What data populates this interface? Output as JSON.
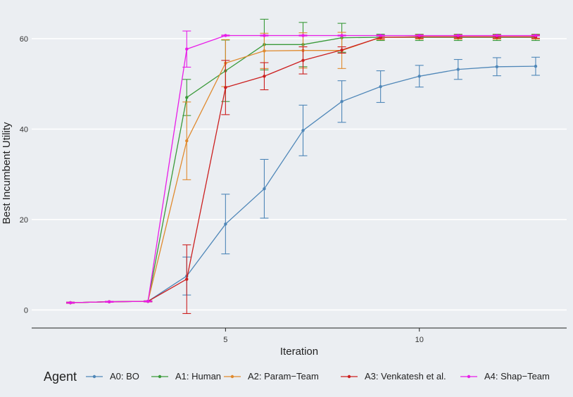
{
  "chart_data": {
    "type": "line",
    "title": "",
    "xlabel": "Iteration",
    "ylabel": "Best Incumbent Utility",
    "xlim": [
      0,
      13.8
    ],
    "ylim": [
      -4,
      67
    ],
    "x_ticks": [
      5,
      10
    ],
    "x_tick_labels": [
      "5",
      "10"
    ],
    "y_ticks": [
      0,
      20,
      40,
      60
    ],
    "y_tick_labels": [
      "0",
      "20",
      "40",
      "60"
    ],
    "grid": "horizontal major lines (white)",
    "legend": {
      "title": "Agent",
      "position": "bottom",
      "entries": [
        "A0: BO",
        "A1: Human",
        "A2: Param−Team",
        "A3: Venkatesh et al.",
        "A4: Shap−Team"
      ]
    },
    "x": [
      1,
      2,
      3,
      4,
      5,
      6,
      7,
      8,
      9,
      10,
      11,
      12,
      13
    ],
    "series": [
      {
        "name": "A0: BO",
        "color": "#4f87b8",
        "values": [
          1.6,
          1.8,
          1.9,
          7.5,
          19.0,
          26.8,
          39.7,
          46.1,
          49.4,
          51.7,
          53.2,
          53.8,
          53.9
        ],
        "errors": [
          0.1,
          0.1,
          0.1,
          4.2,
          6.6,
          6.5,
          5.6,
          4.6,
          3.5,
          2.4,
          2.2,
          2.0,
          2.0
        ]
      },
      {
        "name": "A1: Human",
        "color": "#3a9a3a",
        "values": [
          1.6,
          1.8,
          1.9,
          47.0,
          52.9,
          58.7,
          58.7,
          60.2,
          60.3,
          60.3,
          60.3,
          60.3,
          60.3
        ],
        "errors": [
          0.1,
          0.1,
          0.1,
          4.0,
          6.8,
          5.6,
          4.9,
          3.2,
          0.7,
          0.7,
          0.7,
          0.7,
          0.7
        ]
      },
      {
        "name": "A2: Param−Team",
        "color": "#e08a2e",
        "values": [
          1.6,
          1.8,
          1.9,
          37.4,
          54.6,
          57.3,
          57.4,
          57.4,
          60.3,
          60.4,
          60.4,
          60.4,
          60.4
        ],
        "errors": [
          0.1,
          0.1,
          0.1,
          8.6,
          5.2,
          3.9,
          3.9,
          4.0,
          0.5,
          0.5,
          0.5,
          0.5,
          0.5
        ]
      },
      {
        "name": "A3: Venkatesh et al.",
        "color": "#cc1f1f",
        "values": [
          1.6,
          1.8,
          1.9,
          6.8,
          49.2,
          51.7,
          55.2,
          57.5,
          60.3,
          60.4,
          60.4,
          60.4,
          60.4
        ],
        "errors": [
          0.1,
          0.1,
          0.1,
          7.6,
          6.0,
          3.0,
          3.0,
          0.7,
          0.3,
          0.3,
          0.3,
          0.3,
          0.3
        ]
      },
      {
        "name": "A4: Shap−Team",
        "color": "#e81ce8",
        "values": [
          1.6,
          1.8,
          1.9,
          57.7,
          60.7,
          60.7,
          60.7,
          60.7,
          60.7,
          60.7,
          60.7,
          60.7,
          60.7
        ],
        "errors": [
          0.1,
          0.1,
          0.1,
          4.0,
          0.1,
          0.1,
          0.1,
          0.1,
          0.1,
          0.1,
          0.1,
          0.1,
          0.1
        ]
      }
    ]
  }
}
